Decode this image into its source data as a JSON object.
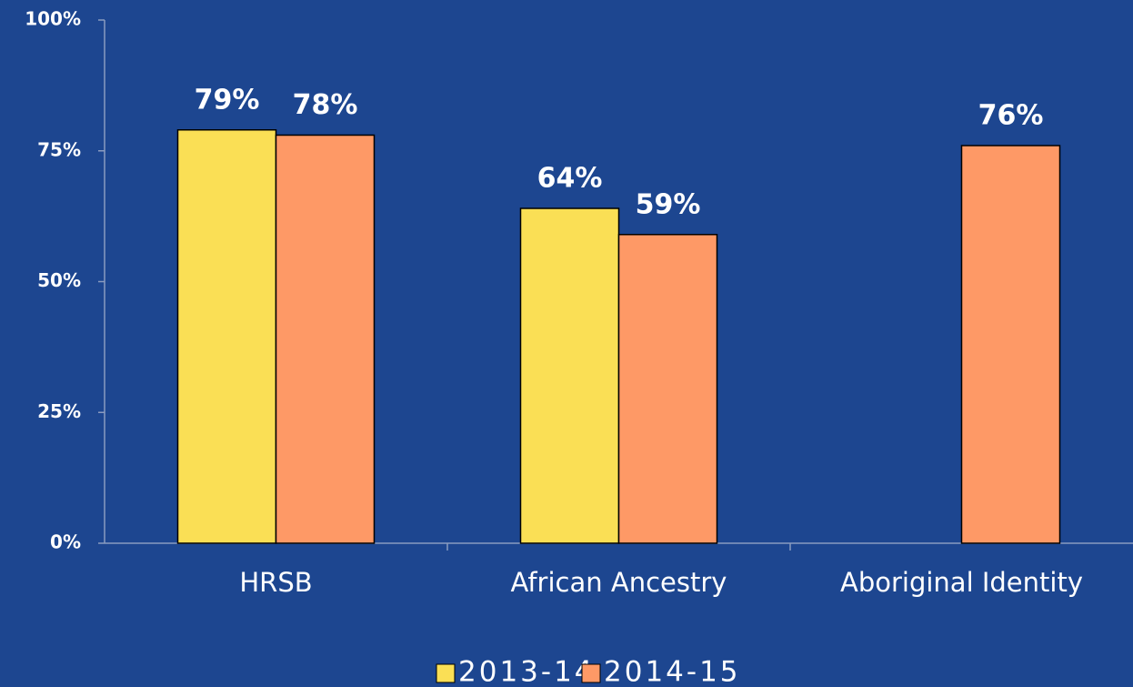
{
  "chart_data": {
    "type": "bar",
    "categories": [
      "HRSB",
      "African Ancestry",
      "Aboriginal Identity"
    ],
    "series": [
      {
        "name": "2013-14",
        "color": "#fadf55",
        "values": [
          79,
          64,
          null
        ],
        "value_labels": [
          "79%",
          "64%",
          null
        ]
      },
      {
        "name": "2014-15",
        "color": "#fe9966",
        "values": [
          78,
          59,
          76
        ],
        "value_labels": [
          "78%",
          "59%",
          "76%"
        ]
      }
    ],
    "ylim": [
      0,
      100
    ],
    "yticks": [
      {
        "value": 0,
        "label": "0%"
      },
      {
        "value": 25,
        "label": "25%"
      },
      {
        "value": 50,
        "label": "50%"
      },
      {
        "value": 75,
        "label": "75%"
      },
      {
        "value": 100,
        "label": "100%"
      }
    ],
    "grid": false,
    "legend": "bottom"
  }
}
